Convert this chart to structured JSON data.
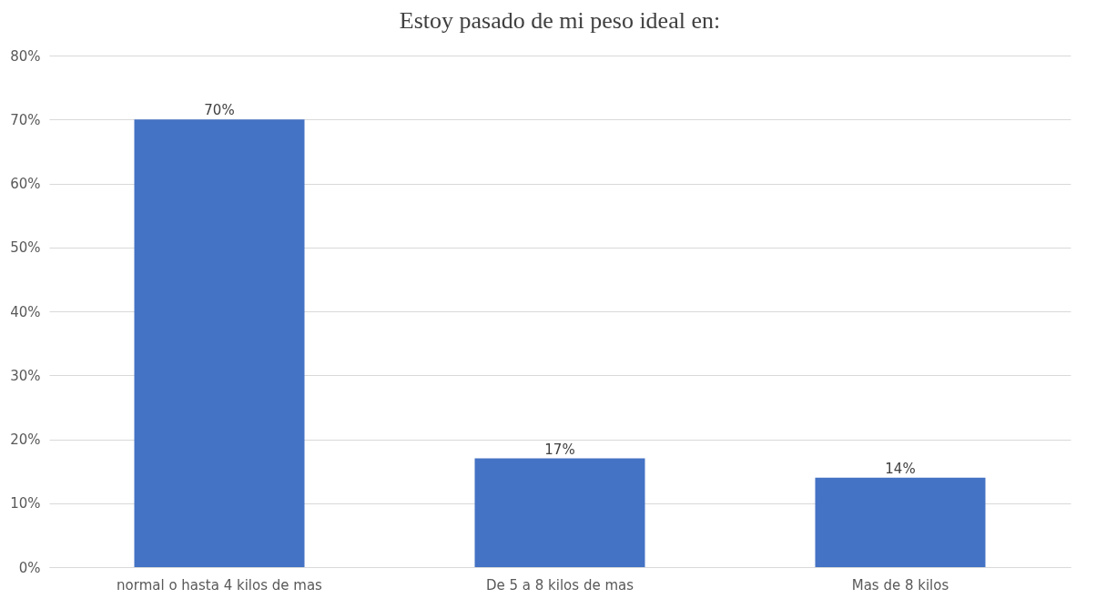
{
  "chart_data": {
    "type": "bar",
    "title": "Estoy pasado de mi peso ideal en:",
    "categories": [
      "normal o hasta 4 kilos de mas",
      "De 5 a 8 kilos de mas",
      "Mas de 8 kilos"
    ],
    "values": [
      70,
      17,
      14
    ],
    "value_labels": [
      "70%",
      "17%",
      "14%"
    ],
    "color": "#4472c4",
    "ylim": [
      0,
      80
    ],
    "yticks": [
      {
        "value": 0,
        "label": "0%"
      },
      {
        "value": 10,
        "label": "10%"
      },
      {
        "value": 20,
        "label": "20%"
      },
      {
        "value": 30,
        "label": "30%"
      },
      {
        "value": 40,
        "label": "40%"
      },
      {
        "value": 50,
        "label": "50%"
      },
      {
        "value": 60,
        "label": "60%"
      },
      {
        "value": 70,
        "label": "70%"
      },
      {
        "value": 80,
        "label": "80%"
      }
    ],
    "grid": "y"
  }
}
